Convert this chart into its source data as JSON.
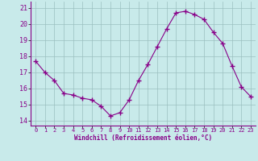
{
  "x": [
    0,
    1,
    2,
    3,
    4,
    5,
    6,
    7,
    8,
    9,
    10,
    11,
    12,
    13,
    14,
    15,
    16,
    17,
    18,
    19,
    20,
    21,
    22,
    23
  ],
  "y": [
    17.7,
    17.0,
    16.5,
    15.7,
    15.6,
    15.4,
    15.3,
    14.9,
    14.3,
    14.5,
    15.3,
    16.5,
    17.5,
    18.6,
    19.7,
    20.7,
    20.8,
    20.6,
    20.3,
    19.5,
    18.8,
    17.4,
    16.1,
    15.5
  ],
  "line_color": "#880088",
  "marker": "+",
  "marker_size": 4,
  "bg_color": "#c8eaea",
  "grid_color": "#9bbfbf",
  "xlabel": "Windchill (Refroidissement éolien,°C)",
  "xlabel_color": "#880088",
  "ytick_labels": [
    "14",
    "15",
    "16",
    "17",
    "18",
    "19",
    "20",
    "21"
  ],
  "ytick_vals": [
    14,
    15,
    16,
    17,
    18,
    19,
    20,
    21
  ],
  "xtick_vals": [
    0,
    1,
    2,
    3,
    4,
    5,
    6,
    7,
    8,
    9,
    10,
    11,
    12,
    13,
    14,
    15,
    16,
    17,
    18,
    19,
    20,
    21,
    22,
    23
  ],
  "ylim": [
    13.7,
    21.4
  ],
  "xlim": [
    -0.5,
    23.5
  ]
}
